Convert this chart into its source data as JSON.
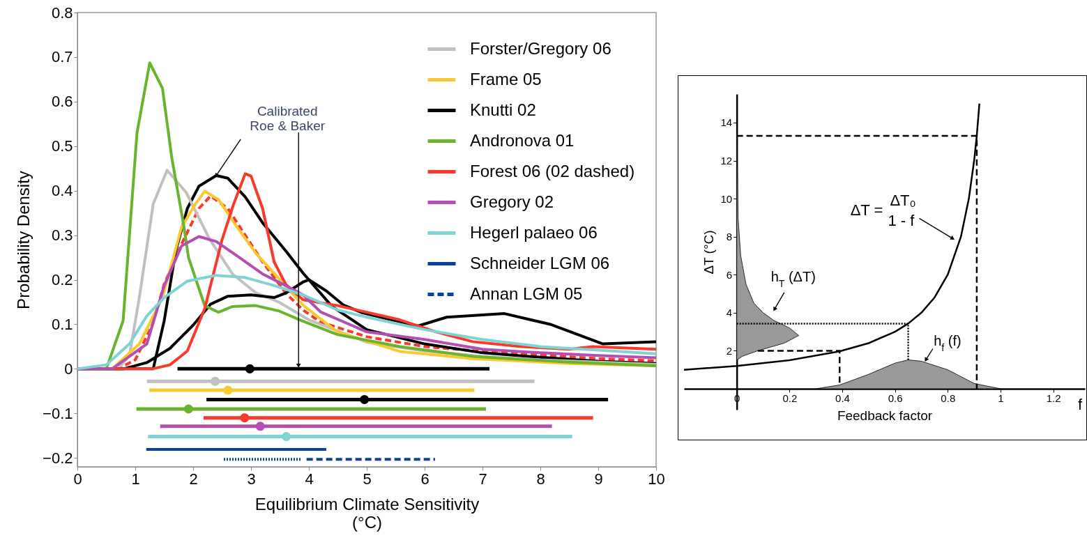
{
  "chart_data": [
    {
      "type": "line",
      "xlabel": "Equilibrium Climate Sensitivity\n(°C)",
      "ylabel": "Probability Density",
      "xlim": [
        0,
        10
      ],
      "ylim": [
        -0.22,
        0.8
      ],
      "xticks": [
        0,
        1,
        2,
        3,
        4,
        5,
        6,
        7,
        8,
        9,
        10
      ],
      "yticks": [
        -0.2,
        -0.1,
        0,
        0.1,
        0.2,
        0.3,
        0.4,
        0.5,
        0.6,
        0.7,
        0.8
      ],
      "legend": "top right",
      "annotations": [
        {
          "text": "Calibrated\nRoe & Baker",
          "x": 2.4,
          "y": 0.434
        }
      ],
      "series": [
        {
          "name": "Forster/Gregory 06",
          "color": "#c0c0c0",
          "x": [
            0,
            0.7,
            0.9,
            1.07,
            1.31,
            1.55,
            1.88,
            2.28,
            2.68,
            3.08,
            3.48,
            4,
            5,
            6,
            7,
            8,
            10
          ],
          "values": [
            0,
            0,
            0.03,
            0.16,
            0.37,
            0.446,
            0.396,
            0.292,
            0.213,
            0.171,
            0.15,
            0.11,
            0.06,
            0.04,
            0.028,
            0.02,
            0.01
          ]
        },
        {
          "name": "Frame 05",
          "color": "#f8c930",
          "x": [
            0,
            0.6,
            1.07,
            1.47,
            1.8,
            2.04,
            2.2,
            2.44,
            2.76,
            3.08,
            3.48,
            3.9,
            4.49,
            5.57,
            6.83,
            8.5,
            10
          ],
          "values": [
            0,
            0,
            0.056,
            0.16,
            0.318,
            0.37,
            0.399,
            0.38,
            0.318,
            0.26,
            0.203,
            0.143,
            0.083,
            0.039,
            0.023,
            0.012,
            0.007
          ]
        },
        {
          "name": "Knutti 02",
          "color": "#000000",
          "x": [
            0,
            0.8,
            1.2,
            1.6,
            2.0,
            2.3,
            2.6,
            3.0,
            3.4,
            3.6,
            3.9,
            4.0,
            4.3,
            4.6,
            4.92,
            5.88,
            6.38,
            7.38,
            8.17,
            9.08,
            10
          ],
          "values": [
            0,
            0,
            0.014,
            0.046,
            0.098,
            0.145,
            0.163,
            0.166,
            0.16,
            0.17,
            0.195,
            0.2,
            0.175,
            0.143,
            0.126,
            0.096,
            0.116,
            0.124,
            0.1,
            0.056,
            0.061
          ]
        },
        {
          "name": "Andronova 01",
          "color": "#6ab42d",
          "x": [
            0,
            0.5,
            0.79,
            1.03,
            1.25,
            1.47,
            1.63,
            1.84,
            1.92,
            2.2,
            2.44,
            2.68,
            3.08,
            3.48,
            3.88,
            4.49,
            5.57,
            6.83,
            8.5,
            10
          ],
          "values": [
            0,
            0,
            0.108,
            0.53,
            0.687,
            0.63,
            0.475,
            0.32,
            0.25,
            0.142,
            0.127,
            0.14,
            0.142,
            0.13,
            0.108,
            0.077,
            0.05,
            0.028,
            0.015,
            0.007
          ]
        },
        {
          "name": "Forest 06 (02 dashed)",
          "color": "#f93a2a",
          "x": [
            0,
            1.3,
            1.6,
            1.9,
            2.2,
            2.5,
            2.7,
            2.9,
            3.0,
            3.2,
            3.4,
            3.6,
            3.9,
            4.5,
            5.57,
            6.2,
            6.83,
            7.67,
            8.5,
            8.9,
            10
          ],
          "values": [
            0,
            0,
            0.009,
            0.04,
            0.135,
            0.29,
            0.37,
            0.438,
            0.433,
            0.36,
            0.24,
            0.19,
            0.155,
            0.142,
            0.11,
            0.083,
            0.061,
            0.05,
            0.044,
            0.05,
            0.044
          ]
        },
        {
          "name": "Gregory 02",
          "color": "#b24fb2",
          "x": [
            0,
            0.6,
            1.2,
            1.5,
            1.8,
            2.1,
            2.4,
            2.8,
            3.2,
            3.6,
            3.9,
            4.2,
            5,
            6,
            7,
            8,
            9,
            10
          ],
          "values": [
            0,
            0,
            0.056,
            0.187,
            0.276,
            0.297,
            0.286,
            0.25,
            0.213,
            0.187,
            0.166,
            0.128,
            0.083,
            0.066,
            0.044,
            0.036,
            0.03,
            0.025
          ]
        },
        {
          "name": "Hegerl palaeo 06",
          "color": "#7fd3d3",
          "x": [
            0,
            0.5,
            0.9,
            1.2,
            1.5,
            1.9,
            2.4,
            2.9,
            3.4,
            3.9,
            4.5,
            5,
            6,
            7,
            8,
            9,
            10
          ],
          "values": [
            0,
            0.009,
            0.056,
            0.119,
            0.16,
            0.197,
            0.21,
            0.205,
            0.187,
            0.166,
            0.132,
            0.116,
            0.088,
            0.066,
            0.05,
            0.042,
            0.034
          ]
        },
        {
          "name": "Schneider LGM 06",
          "color": "#0b3fa0",
          "x": [
            1.19,
            4.3
          ],
          "values": [
            -0.181,
            -0.181
          ]
        },
        {
          "name": "Annan LGM 05",
          "color": "#0b3fa0",
          "line_style": "dashed",
          "x": [
            3.96,
            6.18
          ],
          "values": [
            -0.203,
            -0.203
          ]
        },
        {
          "color": "#0b3fa0",
          "line_style": "dotted",
          "x": [
            2.53,
            3.88
          ],
          "values": [
            -0.203,
            -0.203
          ]
        },
        {
          "color": "#f93a2a",
          "line_style": "dashed",
          "x": [
            0,
            0.7,
            1.0,
            1.3,
            1.5,
            1.8,
            2.1,
            2.3,
            2.6,
            2.9,
            3.2,
            3.6,
            3.9,
            4.2,
            5,
            6,
            7,
            8,
            9,
            10
          ],
          "values": [
            0,
            0,
            0.02,
            0.1,
            0.19,
            0.28,
            0.36,
            0.388,
            0.36,
            0.3,
            0.24,
            0.17,
            0.132,
            0.105,
            0.072,
            0.05,
            0.039,
            0.031,
            0.023,
            0.018
          ]
        },
        {
          "color": "#000000",
          "x": [
            0,
            1.31,
            1.5,
            1.7,
            1.9,
            2.1,
            2.4,
            2.6,
            2.9,
            3.2,
            3.6,
            3.9,
            4.4,
            5,
            6,
            7,
            8,
            9,
            10
          ],
          "values": [
            0,
            0,
            0.108,
            0.265,
            0.36,
            0.41,
            0.434,
            0.428,
            0.386,
            0.328,
            0.265,
            0.215,
            0.14,
            0.088,
            0.056,
            0.036,
            0.026,
            0.017,
            0.012
          ]
        },
        {
          "type": "scatter",
          "marker": "circle",
          "color": "#000000",
          "x": [
            2.98
          ],
          "values": [
            0
          ],
          "xerrors": [
            [
              1.73,
              7.12
            ]
          ]
        },
        {
          "type": "scatter",
          "marker": "circle",
          "color": "#c0c0c0",
          "x": [
            2.38
          ],
          "values": [
            -0.028
          ],
          "xerrors": [
            [
              1.2,
              7.9
            ]
          ]
        },
        {
          "type": "scatter",
          "marker": "circle",
          "color": "#f8c930",
          "x": [
            2.6
          ],
          "values": [
            -0.048
          ],
          "xerrors": [
            [
              1.24,
              6.86
            ]
          ]
        },
        {
          "type": "scatter",
          "marker": "circle",
          "color": "#000000",
          "x": [
            4.96
          ],
          "values": [
            -0.069
          ],
          "xerrors": [
            [
              2.23,
              9.17
            ]
          ]
        },
        {
          "type": "scatter",
          "marker": "circle",
          "color": "#6ab42d",
          "x": [
            1.92
          ],
          "values": [
            -0.09
          ],
          "xerrors": [
            [
              1.02,
              7.06
            ]
          ]
        },
        {
          "type": "scatter",
          "marker": "circle",
          "color": "#f93a2a",
          "x": [
            2.89
          ],
          "values": [
            -0.11
          ],
          "xerrors": [
            [
              2.18,
              8.91
            ]
          ]
        },
        {
          "type": "scatter",
          "marker": "circle",
          "color": "#b24fb2",
          "x": [
            3.16
          ],
          "values": [
            -0.129
          ],
          "xerrors": [
            [
              1.43,
              8.2
            ]
          ]
        },
        {
          "type": "scatter",
          "marker": "circle",
          "color": "#7fd3d3",
          "x": [
            3.61
          ],
          "values": [
            -0.152
          ],
          "xerrors": [
            [
              1.22,
              8.55
            ]
          ]
        }
      ]
    },
    {
      "type": "line",
      "xlabel": "Feedback factor",
      "ylabel": "ΔT (°C)",
      "xlim": [
        -0.2,
        1.32
      ],
      "ylim": [
        -1.1,
        15.5
      ],
      "xticks": [
        0,
        0.2,
        0.4,
        0.6,
        0.8,
        1,
        1.2
      ],
      "yticks": [
        2,
        4,
        6,
        8,
        10,
        12,
        14
      ],
      "annotations": [
        "ΔT =",
        "ΔT₀",
        {
          "text": "1 - f",
          "x": 0.819,
          "y": 7.9
        },
        {
          "text": "h$_{T}$ (ΔT)",
          "x": 0.143,
          "y": 4.18
        },
        {
          "text": "h$_{f}$ (f)",
          "x": 0.717,
          "y": 1.52
        },
        "f"
      ],
      "series": [
        {
          "type": "area",
          "color": "#999999",
          "x": [
            0.3,
            0.39,
            0.5,
            0.6,
            0.65,
            0.7,
            0.8,
            0.9,
            1.0
          ],
          "values": [
            0,
            0.2,
            0.76,
            1.35,
            1.52,
            1.45,
            1.0,
            0.28,
            0
          ]
        },
        {
          "type": "area",
          "color": "#999999",
          "x": [
            0,
            0.02,
            0.08,
            0.18,
            0.235,
            0.2,
            0.14,
            0.1,
            0.065,
            0.035,
            0.015,
            0.005,
            0
          ],
          "values": [
            1.5,
            1.7,
            2.0,
            2.4,
            2.8,
            3.2,
            3.6,
            4.0,
            4.5,
            5.5,
            7,
            9,
            14
          ]
        },
        {
          "color": "#000000",
          "line_style": "dashed",
          "x": [
            0,
            0.91,
            0.91
          ],
          "values": [
            13.3,
            13.3,
            0
          ]
        },
        {
          "color": "#000000",
          "line_style": "dotted",
          "x": [
            0,
            0.65,
            0.65
          ],
          "values": [
            3.43,
            3.43,
            1.52
          ]
        },
        {
          "color": "#000000",
          "line_style": "dashed",
          "x": [
            0.08,
            0.39,
            0.39
          ],
          "values": [
            2.0,
            2.0,
            0.2
          ]
        },
        {
          "color": "#000000",
          "x": [
            -0.2,
            0,
            0.2,
            0.39,
            0.5,
            0.6,
            0.65,
            0.7,
            0.75,
            0.8,
            0.85,
            0.88,
            0.9,
            0.91,
            0.92
          ],
          "values": [
            1.0,
            1.2,
            1.5,
            1.97,
            2.4,
            3.0,
            3.43,
            4.0,
            4.8,
            6.0,
            8.0,
            10.0,
            12.0,
            13.3,
            15.0
          ]
        }
      ]
    }
  ]
}
